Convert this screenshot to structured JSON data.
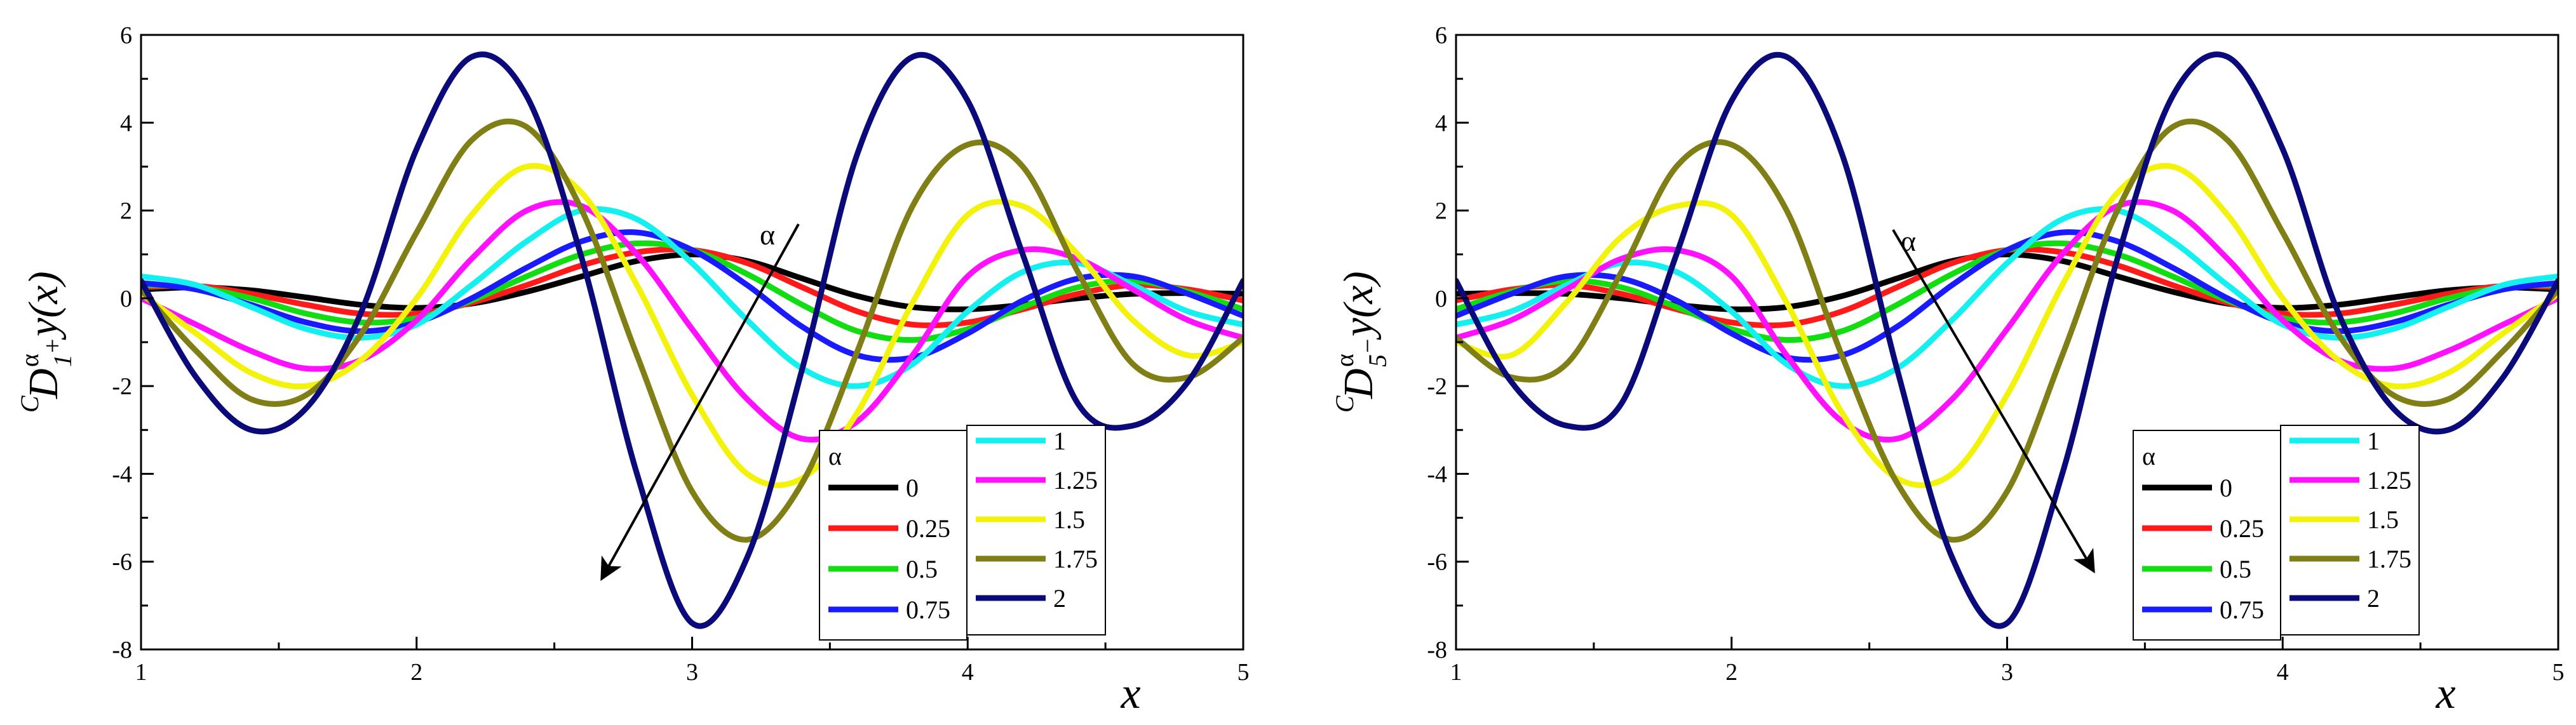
{
  "figure": {
    "alpha_values": [
      "0",
      "0.25",
      "0.5",
      "0.75",
      "1",
      "1.25",
      "1.5",
      "1.75",
      "2"
    ],
    "colors": [
      "#000000",
      "#ff1a1a",
      "#11dd11",
      "#1a1aff",
      "#14f0f0",
      "#ff11ff",
      "#f2f20a",
      "#807f16",
      "#0a0a7a"
    ],
    "legend_title": "α",
    "arrow_label": "α"
  },
  "chart_data": [
    {
      "type": "line",
      "panel": "left",
      "title": "",
      "ylabel": {
        "pre": "C",
        "main": "D",
        "sup": "α",
        "sub": "1",
        "subsup": "+",
        "tail": "y(x)"
      },
      "xlabel": "x",
      "xlim": [
        1,
        5
      ],
      "ylim": [
        -8,
        6
      ],
      "x_ticks": [
        "1",
        "2",
        "3",
        "4",
        "5"
      ],
      "y_ticks": [
        "-8",
        "-6",
        "-4",
        "-2",
        "0",
        "2",
        "4",
        "6"
      ],
      "grid": false,
      "legend_title": "α",
      "arrow_label": "α",
      "series": [
        {
          "name": "0",
          "x": [
            1,
            1.2,
            1.4,
            1.6,
            1.8,
            2,
            2.2,
            2.4,
            2.6,
            2.8,
            3,
            3.2,
            3.4,
            3.6,
            3.8,
            4,
            4.2,
            4.4,
            4.6,
            4.8,
            5
          ],
          "y": [
            0.2,
            0.25,
            0.18,
            0.02,
            -0.15,
            -0.22,
            -0.12,
            0.15,
            0.5,
            0.85,
            1.0,
            0.85,
            0.45,
            0.05,
            -0.2,
            -0.25,
            -0.15,
            0.0,
            0.1,
            0.12,
            0.1
          ]
        },
        {
          "name": "0.25",
          "x": [
            1,
            1.2,
            1.4,
            1.6,
            1.8,
            2,
            2.2,
            2.4,
            2.6,
            2.8,
            3,
            3.2,
            3.4,
            3.6,
            3.8,
            4,
            4.2,
            4.4,
            4.6,
            4.8,
            5
          ],
          "y": [
            0.25,
            0.28,
            0.1,
            -0.15,
            -0.35,
            -0.35,
            -0.1,
            0.3,
            0.75,
            1.05,
            1.1,
            0.8,
            0.25,
            -0.3,
            -0.6,
            -0.55,
            -0.25,
            0.1,
            0.3,
            0.2,
            -0.05
          ]
        },
        {
          "name": "0.5",
          "x": [
            1,
            1.2,
            1.4,
            1.6,
            1.8,
            2,
            2.2,
            2.4,
            2.6,
            2.8,
            3,
            3.2,
            3.4,
            3.6,
            3.8,
            4,
            4.2,
            4.4,
            4.6,
            4.8,
            5
          ],
          "y": [
            0.3,
            0.25,
            0.0,
            -0.35,
            -0.55,
            -0.45,
            -0.05,
            0.5,
            1.0,
            1.25,
            1.1,
            0.55,
            -0.15,
            -0.75,
            -0.95,
            -0.7,
            -0.2,
            0.25,
            0.4,
            0.15,
            -0.25
          ]
        },
        {
          "name": "0.75",
          "x": [
            1,
            1.2,
            1.4,
            1.6,
            1.8,
            2,
            2.2,
            2.4,
            2.6,
            2.8,
            3,
            3.2,
            3.4,
            3.6,
            3.8,
            4,
            4.2,
            4.4,
            4.6,
            4.8,
            5
          ],
          "y": [
            0.35,
            0.2,
            -0.15,
            -0.55,
            -0.75,
            -0.55,
            0.0,
            0.7,
            1.3,
            1.5,
            1.1,
            0.3,
            -0.65,
            -1.3,
            -1.35,
            -0.8,
            -0.05,
            0.45,
            0.5,
            0.1,
            -0.4
          ]
        },
        {
          "name": "1",
          "x": [
            1,
            1.2,
            1.4,
            1.6,
            1.8,
            2,
            2.2,
            2.4,
            2.6,
            2.8,
            3,
            3.2,
            3.4,
            3.6,
            3.8,
            4,
            4.2,
            4.4,
            4.6,
            4.8,
            5
          ],
          "y": [
            0.5,
            0.3,
            -0.2,
            -0.7,
            -0.9,
            -0.6,
            0.3,
            1.3,
            2.0,
            1.8,
            0.8,
            -0.5,
            -1.6,
            -2.0,
            -1.5,
            -0.3,
            0.6,
            0.8,
            0.3,
            -0.3,
            -0.6
          ]
        },
        {
          "name": "1.25",
          "x": [
            1,
            1.2,
            1.4,
            1.6,
            1.8,
            2,
            2.2,
            2.4,
            2.6,
            2.8,
            3,
            3.2,
            3.4,
            3.6,
            3.8,
            4,
            4.2,
            4.4,
            4.6,
            4.8,
            5
          ],
          "y": [
            0.0,
            -0.6,
            -1.2,
            -1.6,
            -1.4,
            -0.5,
            0.9,
            2.0,
            2.1,
            1.0,
            -0.7,
            -2.3,
            -3.2,
            -2.8,
            -1.3,
            0.5,
            1.1,
            0.9,
            0.2,
            -0.5,
            -0.9
          ]
        },
        {
          "name": "1.5",
          "x": [
            1,
            1.2,
            1.4,
            1.6,
            1.8,
            2,
            2.2,
            2.4,
            2.6,
            2.8,
            3,
            3.2,
            3.4,
            3.6,
            3.8,
            4,
            4.2,
            4.4,
            4.6,
            4.8,
            5
          ],
          "y": [
            0.1,
            -0.8,
            -1.7,
            -2.0,
            -1.4,
            0.0,
            1.9,
            3.0,
            2.4,
            0.3,
            -2.2,
            -4.0,
            -4.1,
            -2.6,
            -0.1,
            1.9,
            2.1,
            1.0,
            -0.5,
            -1.3,
            -1.0
          ]
        },
        {
          "name": "1.75",
          "x": [
            1,
            1.2,
            1.4,
            1.6,
            1.8,
            2,
            2.2,
            2.4,
            2.6,
            2.8,
            3,
            3.2,
            3.4,
            3.6,
            3.8,
            4,
            4.2,
            4.4,
            4.6,
            4.8,
            5
          ],
          "y": [
            0.2,
            -1.2,
            -2.3,
            -2.2,
            -0.8,
            1.5,
            3.6,
            3.9,
            2.0,
            -1.3,
            -4.4,
            -5.5,
            -4.2,
            -1.2,
            2.1,
            3.5,
            3.0,
            0.6,
            -1.5,
            -1.8,
            -0.9
          ]
        },
        {
          "name": "2",
          "x": [
            1,
            1.2,
            1.4,
            1.6,
            1.8,
            2,
            2.2,
            2.4,
            2.6,
            2.8,
            3,
            3.2,
            3.4,
            3.6,
            3.8,
            4,
            4.2,
            4.4,
            4.6,
            4.8,
            5
          ],
          "y": [
            0.4,
            -1.8,
            -3.0,
            -2.5,
            -0.3,
            3.4,
            5.5,
            4.6,
            0.9,
            -4.0,
            -7.4,
            -5.9,
            -1.6,
            3.3,
            5.5,
            4.5,
            1.0,
            -2.4,
            -2.9,
            -1.9,
            0.4
          ]
        }
      ]
    },
    {
      "type": "line",
      "panel": "right",
      "title": "",
      "ylabel": {
        "pre": "C",
        "main": "D",
        "sup": "α",
        "sub": "5",
        "subsup": "−",
        "tail": "y(x)"
      },
      "xlabel": "x",
      "xlim": [
        1,
        5
      ],
      "ylim": [
        -8,
        6
      ],
      "x_ticks": [
        "1",
        "2",
        "3",
        "4",
        "5"
      ],
      "y_ticks": [
        "-8",
        "-6",
        "-4",
        "-2",
        "0",
        "2",
        "4",
        "6"
      ],
      "grid": false,
      "legend_title": "α",
      "arrow_label": "α",
      "series": [
        {
          "name": "0",
          "x": [
            1,
            1.2,
            1.4,
            1.6,
            1.8,
            2,
            2.2,
            2.4,
            2.6,
            2.8,
            3,
            3.2,
            3.4,
            3.6,
            3.8,
            4,
            4.2,
            4.4,
            4.6,
            4.8,
            5
          ],
          "y": [
            0.1,
            0.12,
            0.1,
            0.0,
            -0.15,
            -0.25,
            -0.2,
            0.05,
            0.45,
            0.85,
            1.0,
            0.85,
            0.5,
            0.15,
            -0.12,
            -0.22,
            -0.15,
            0.02,
            0.18,
            0.25,
            0.2
          ]
        },
        {
          "name": "0.25",
          "x": [
            1,
            1.2,
            1.4,
            1.6,
            1.8,
            2,
            2.2,
            2.4,
            2.6,
            2.8,
            3,
            3.2,
            3.4,
            3.6,
            3.8,
            4,
            4.2,
            4.4,
            4.6,
            4.8,
            5
          ],
          "y": [
            -0.05,
            0.2,
            0.3,
            0.1,
            -0.25,
            -0.55,
            -0.6,
            -0.3,
            0.25,
            0.8,
            1.1,
            1.05,
            0.75,
            0.3,
            -0.1,
            -0.35,
            -0.35,
            -0.15,
            0.1,
            0.28,
            0.25
          ]
        },
        {
          "name": "0.5",
          "x": [
            1,
            1.2,
            1.4,
            1.6,
            1.8,
            2,
            2.2,
            2.4,
            2.6,
            2.8,
            3,
            3.2,
            3.4,
            3.6,
            3.8,
            4,
            4.2,
            4.4,
            4.6,
            4.8,
            5
          ],
          "y": [
            -0.25,
            0.15,
            0.4,
            0.25,
            -0.2,
            -0.7,
            -0.95,
            -0.75,
            -0.15,
            0.55,
            1.1,
            1.25,
            1.0,
            0.5,
            -0.05,
            -0.45,
            -0.55,
            -0.35,
            0.0,
            0.25,
            0.3
          ]
        },
        {
          "name": "0.75",
          "x": [
            1,
            1.2,
            1.4,
            1.6,
            1.8,
            2,
            2.2,
            2.4,
            2.6,
            2.8,
            3,
            3.2,
            3.4,
            3.6,
            3.8,
            4,
            4.2,
            4.4,
            4.6,
            4.8,
            5
          ],
          "y": [
            -0.4,
            0.1,
            0.5,
            0.45,
            -0.05,
            -0.8,
            -1.35,
            -1.3,
            -0.65,
            0.3,
            1.1,
            1.5,
            1.3,
            0.7,
            0.0,
            -0.55,
            -0.75,
            -0.55,
            -0.15,
            0.2,
            0.35
          ]
        },
        {
          "name": "1",
          "x": [
            1,
            1.2,
            1.4,
            1.6,
            1.8,
            2,
            2.2,
            2.4,
            2.6,
            2.8,
            3,
            3.2,
            3.4,
            3.6,
            3.8,
            4,
            4.2,
            4.4,
            4.6,
            4.8,
            5
          ],
          "y": [
            -0.6,
            -0.3,
            0.3,
            0.8,
            0.6,
            -0.3,
            -1.5,
            -2.0,
            -1.6,
            -0.5,
            0.8,
            1.8,
            2.0,
            1.3,
            0.3,
            -0.6,
            -0.9,
            -0.7,
            -0.2,
            0.3,
            0.5
          ]
        },
        {
          "name": "1.25",
          "x": [
            1,
            1.2,
            1.4,
            1.6,
            1.8,
            2,
            2.2,
            2.4,
            2.6,
            2.8,
            3,
            3.2,
            3.4,
            3.6,
            3.8,
            4,
            4.2,
            4.4,
            4.6,
            4.8,
            5
          ],
          "y": [
            -0.9,
            -0.5,
            0.2,
            0.9,
            1.1,
            0.5,
            -1.3,
            -2.8,
            -3.2,
            -2.3,
            -0.7,
            1.0,
            2.1,
            2.0,
            0.9,
            -0.5,
            -1.4,
            -1.6,
            -1.2,
            -0.6,
            0.0
          ]
        },
        {
          "name": "1.5",
          "x": [
            1,
            1.2,
            1.4,
            1.6,
            1.8,
            2,
            2.2,
            2.4,
            2.6,
            2.8,
            3,
            3.2,
            3.4,
            3.6,
            3.8,
            4,
            4.2,
            4.4,
            4.6,
            4.8,
            5
          ],
          "y": [
            -1.0,
            -1.3,
            -0.1,
            1.4,
            2.1,
            1.9,
            -0.1,
            -2.6,
            -4.1,
            -4.0,
            -2.2,
            0.3,
            2.4,
            3.0,
            1.9,
            0.0,
            -1.4,
            -2.0,
            -1.7,
            -0.8,
            0.1
          ]
        },
        {
          "name": "1.75",
          "x": [
            1,
            1.2,
            1.4,
            1.6,
            1.8,
            2,
            2.2,
            2.4,
            2.6,
            2.8,
            3,
            3.2,
            3.4,
            3.6,
            3.8,
            4,
            4.2,
            4.4,
            4.6,
            4.8,
            5
          ],
          "y": [
            -0.9,
            -1.8,
            -1.5,
            0.6,
            3.0,
            3.5,
            2.0,
            -1.3,
            -4.2,
            -5.5,
            -4.4,
            -1.3,
            2.0,
            3.9,
            3.6,
            1.5,
            -0.8,
            -2.2,
            -2.3,
            -1.2,
            0.2
          ]
        },
        {
          "name": "2",
          "x": [
            1,
            1.2,
            1.4,
            1.6,
            1.8,
            2,
            2.2,
            2.4,
            2.6,
            2.8,
            3,
            3.2,
            3.4,
            3.6,
            3.8,
            4,
            4.2,
            4.4,
            4.6,
            4.8,
            5
          ],
          "y": [
            0.4,
            -1.9,
            -2.9,
            -2.4,
            1.0,
            4.5,
            5.5,
            3.3,
            -1.6,
            -5.9,
            -7.4,
            -4.0,
            0.9,
            4.6,
            5.5,
            3.4,
            -0.3,
            -2.5,
            -3.0,
            -1.8,
            0.4
          ]
        }
      ]
    }
  ]
}
